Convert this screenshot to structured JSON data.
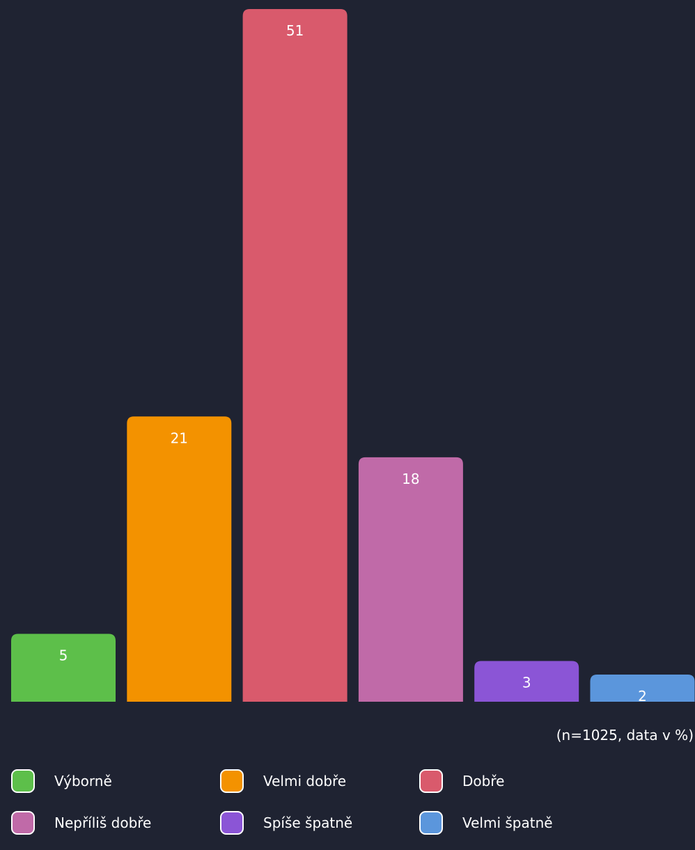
{
  "chart_data": {
    "type": "bar",
    "categories": [
      "Výborně",
      "Velmi dobře",
      "Dobře",
      "Nepříliš dobře",
      "Spíše špatně",
      "Velmi špatně"
    ],
    "values": [
      5,
      21,
      51,
      18,
      3,
      2
    ],
    "colors": [
      "#5dbf4a",
      "#f39200",
      "#d95a6c",
      "#c06aa8",
      "#8b55d6",
      "#5b96dc"
    ],
    "ylim": [
      0,
      51
    ],
    "note": "(n=1025, data v %)",
    "legend_position": "bottom",
    "grid": false
  }
}
